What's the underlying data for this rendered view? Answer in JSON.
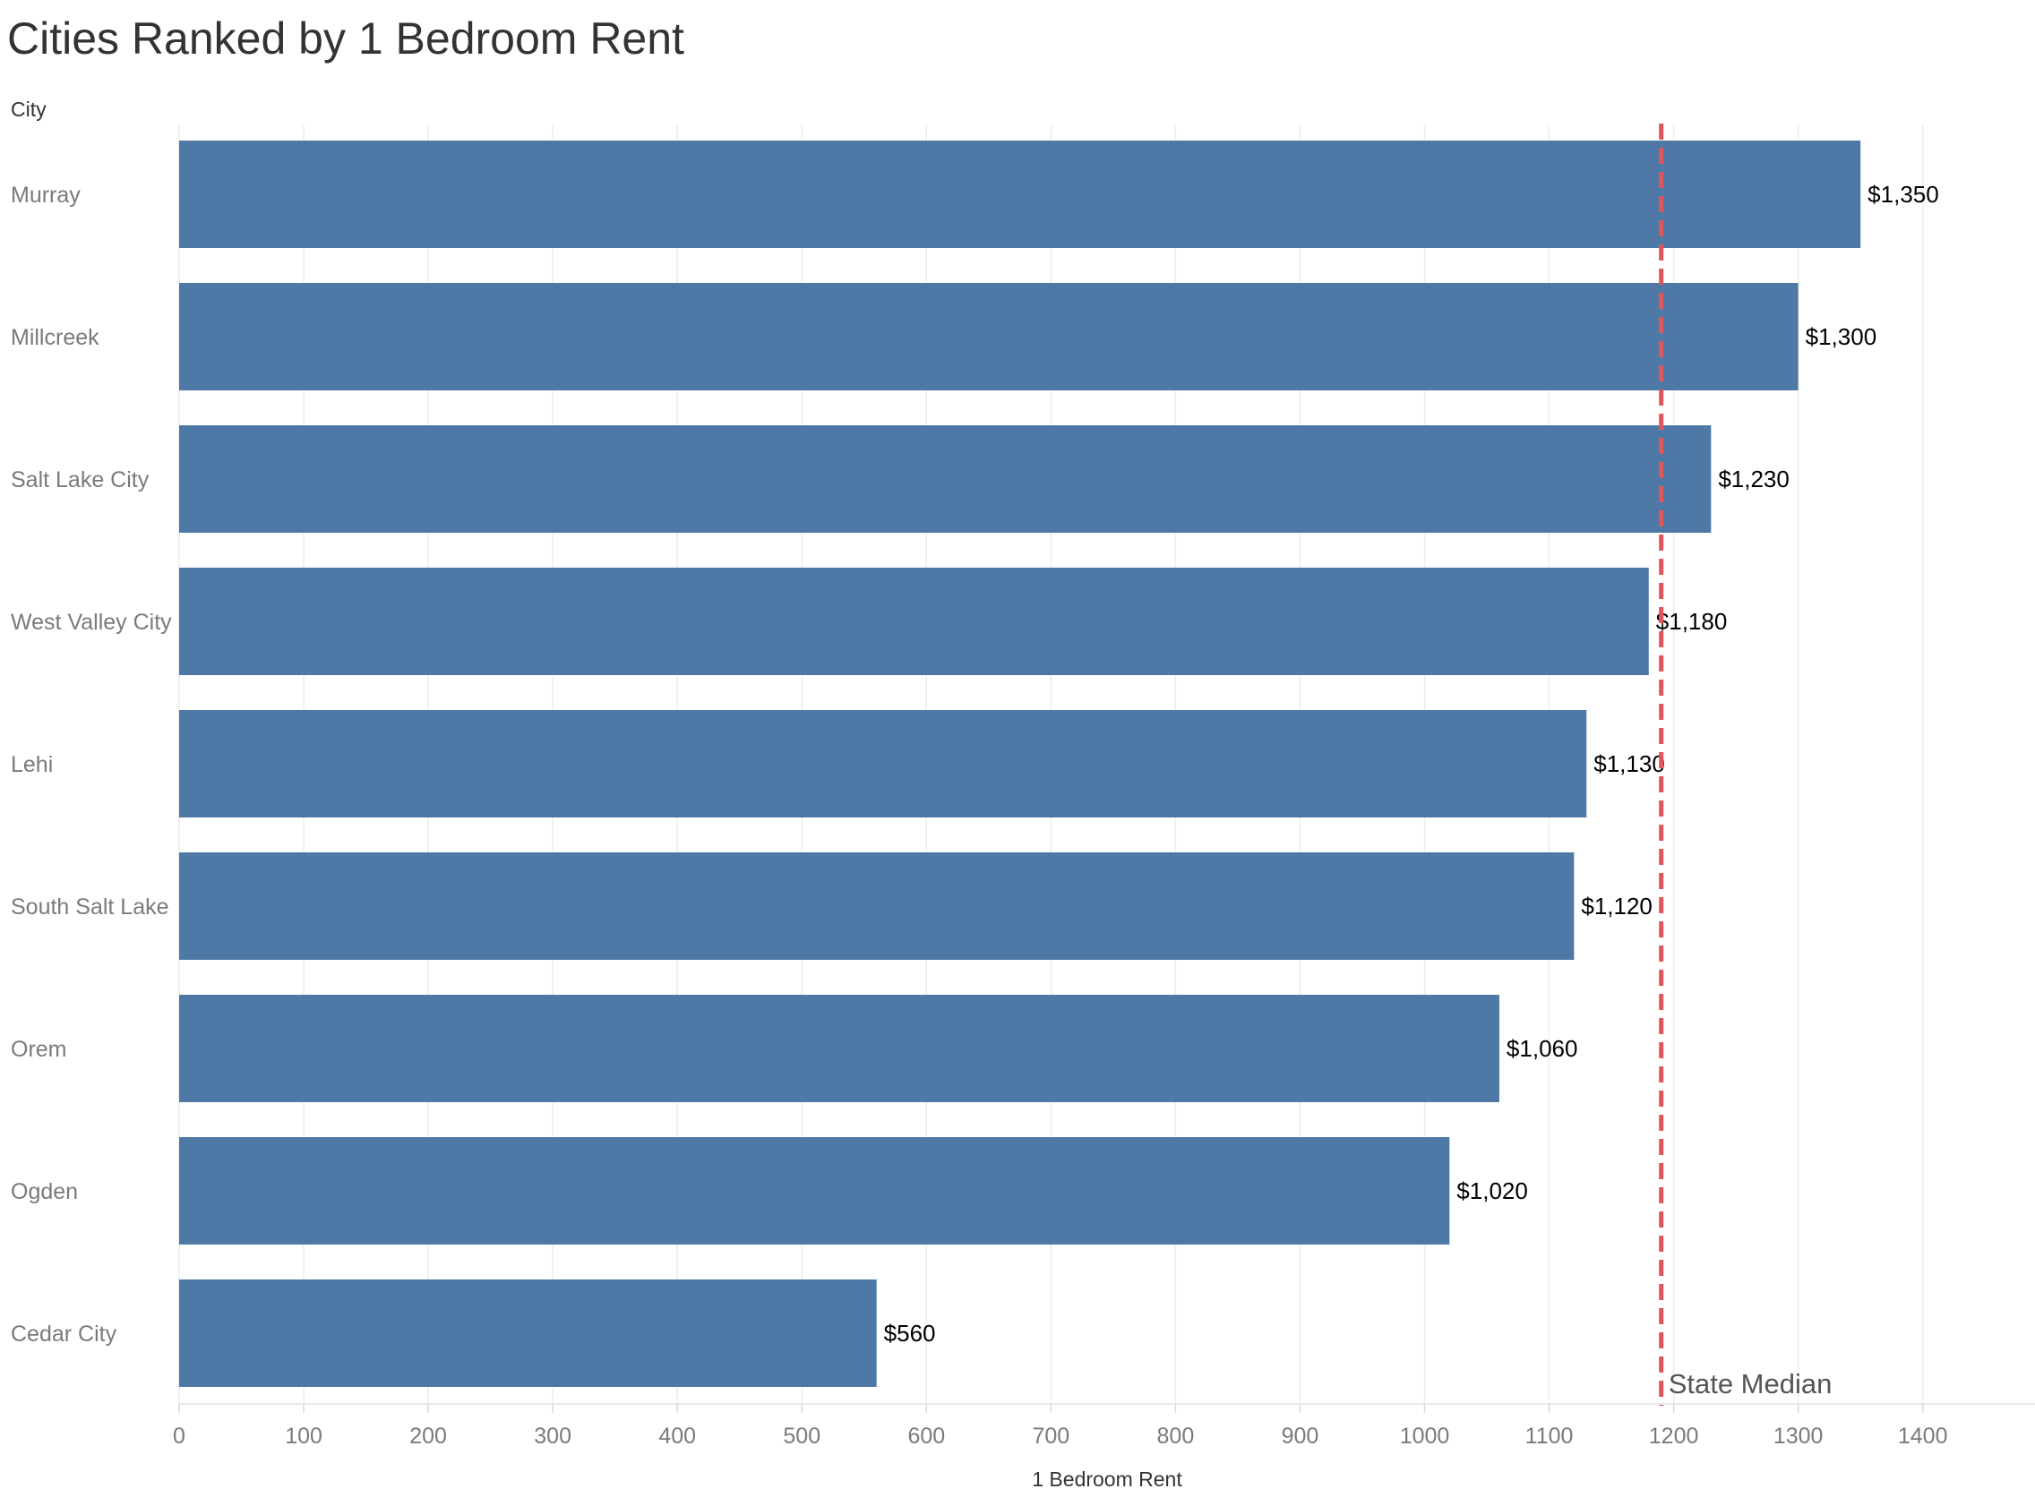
{
  "chart_data": {
    "type": "bar",
    "orientation": "horizontal",
    "title": "Cities Ranked by 1 Bedroom Rent",
    "ylabel": "City",
    "xlabel": "1 Bedroom Rent",
    "categories": [
      "Murray",
      "Millcreek",
      "Salt Lake City",
      "West Valley City",
      "Lehi",
      "South Salt Lake",
      "Orem",
      "Ogden",
      "Cedar City"
    ],
    "values": [
      1350,
      1300,
      1230,
      1180,
      1130,
      1120,
      1060,
      1020,
      560
    ],
    "value_labels": [
      "$1,350",
      "$1,300",
      "$1,230",
      "$1,180",
      "$1,130",
      "$1,120",
      "$1,060",
      "$1,020",
      "$560"
    ],
    "xlim": [
      0,
      1480
    ],
    "xticks": [
      0,
      100,
      200,
      300,
      400,
      500,
      600,
      700,
      800,
      900,
      1000,
      1100,
      1200,
      1300,
      1400
    ],
    "grid": "vertical",
    "reference_line": {
      "label": "State Median",
      "value": 1190,
      "style": "dashed",
      "color": "#e15759"
    },
    "bar_color": "#4e79a7"
  }
}
